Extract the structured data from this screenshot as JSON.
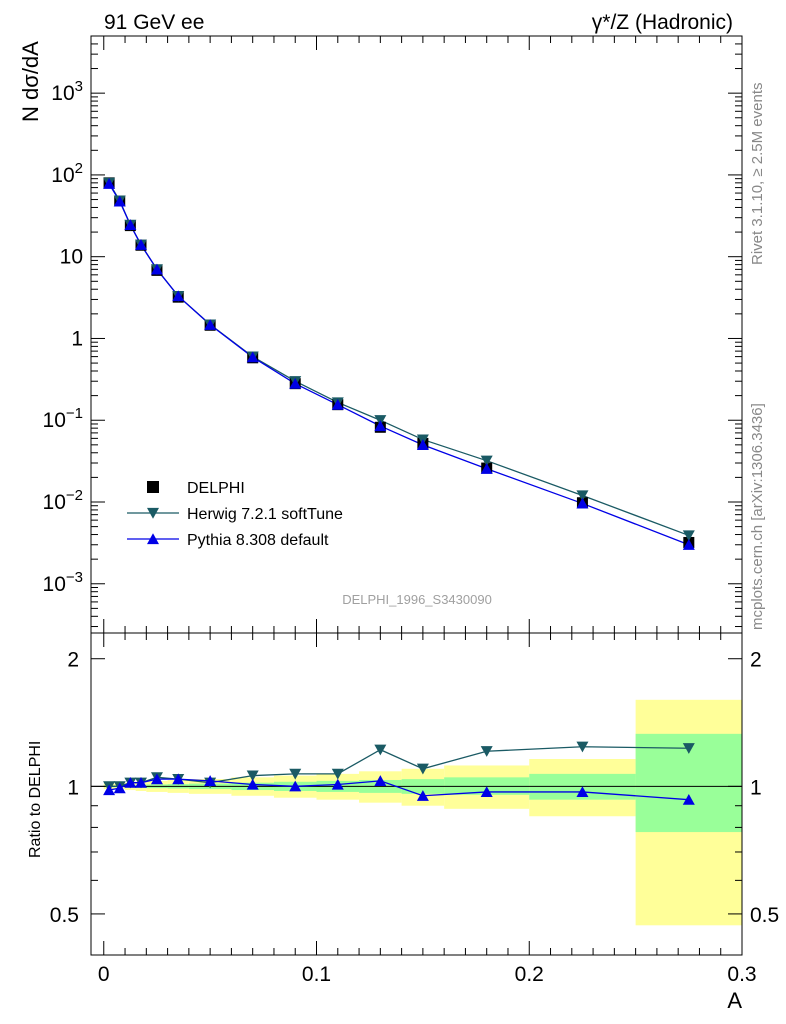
{
  "header": {
    "left": "91 GeV ee",
    "right": "γ*/Z (Hadronic)"
  },
  "side": {
    "rivet": "Rivet 3.1.10, ≥ 2.5M events",
    "mcplots": "mcplots.cern.ch [arXiv:1306.3436]"
  },
  "watermark": "DELPHI_1996_S3430090",
  "chart_data": [
    {
      "type": "scatter",
      "name": "main",
      "ylabel": "N dσ/dA",
      "yscale": "log",
      "ylim": [
        0.00025,
        5000
      ],
      "xlim": [
        -0.006,
        0.3
      ],
      "yticks": [
        {
          "v": 0.001,
          "base": "10",
          "exp": "−3"
        },
        {
          "v": 0.01,
          "base": "10",
          "exp": "−2"
        },
        {
          "v": 0.1,
          "base": "10",
          "exp": "−1"
        },
        {
          "v": 1,
          "base": "1",
          "exp": ""
        },
        {
          "v": 10,
          "base": "10",
          "exp": ""
        },
        {
          "v": 100,
          "base": "10",
          "exp": "2"
        },
        {
          "v": 1000,
          "base": "10",
          "exp": "3"
        }
      ],
      "x": [
        0.0025,
        0.0075,
        0.0125,
        0.0175,
        0.025,
        0.035,
        0.05,
        0.07,
        0.09,
        0.11,
        0.13,
        0.15,
        0.18,
        0.225,
        0.275
      ],
      "series": [
        {
          "name": "DELPHI",
          "color": "#000000",
          "marker": "square",
          "values": [
            80,
            48,
            24,
            13.8,
            6.8,
            3.2,
            1.45,
            0.58,
            0.28,
            0.155,
            0.082,
            0.052,
            0.026,
            0.0098,
            0.0032
          ]
        },
        {
          "name": "Herwig 7.2.1 softTune",
          "color": "#1a5a64",
          "marker": "triangle-down",
          "values": [
            80,
            48.5,
            24.5,
            14.0,
            7.0,
            3.3,
            1.48,
            0.6,
            0.3,
            0.165,
            0.1,
            0.058,
            0.032,
            0.012,
            0.0039
          ]
        },
        {
          "name": "Pythia 8.308 default",
          "color": "#0000e6",
          "marker": "triangle-up",
          "values": [
            78,
            47.5,
            24.5,
            14.0,
            7.0,
            3.3,
            1.47,
            0.59,
            0.28,
            0.155,
            0.085,
            0.05,
            0.0255,
            0.0096,
            0.003
          ]
        }
      ],
      "legend": "lower-left"
    },
    {
      "type": "scatter",
      "name": "ratio",
      "xlabel": "A",
      "ylabel": "Ratio to DELPHI",
      "yscale": "log",
      "ylim": [
        0.4,
        2.3
      ],
      "xlim": [
        -0.006,
        0.3
      ],
      "xticks": [
        {
          "v": 0,
          "label": "0"
        },
        {
          "v": 0.1,
          "label": "0.1"
        },
        {
          "v": 0.2,
          "label": "0.2"
        },
        {
          "v": 0.3,
          "label": "0.3"
        }
      ],
      "yticks": [
        {
          "v": 0.5,
          "label": "0.5"
        },
        {
          "v": 1,
          "label": "1"
        },
        {
          "v": 2,
          "label": "2"
        }
      ],
      "bands": [
        {
          "x0": 0.0,
          "x1": 0.005,
          "y_lo": 0.985,
          "y_hi": 1.015,
          "s_lo": 0.995,
          "s_hi": 1.005
        },
        {
          "x0": 0.005,
          "x1": 0.01,
          "y_lo": 0.985,
          "y_hi": 1.015,
          "s_lo": 0.995,
          "s_hi": 1.005
        },
        {
          "x0": 0.01,
          "x1": 0.015,
          "y_lo": 0.98,
          "y_hi": 1.02,
          "s_lo": 0.993,
          "s_hi": 1.007
        },
        {
          "x0": 0.015,
          "x1": 0.02,
          "y_lo": 0.975,
          "y_hi": 1.025,
          "s_lo": 0.992,
          "s_hi": 1.008
        },
        {
          "x0": 0.02,
          "x1": 0.03,
          "y_lo": 0.97,
          "y_hi": 1.03,
          "s_lo": 0.99,
          "s_hi": 1.01
        },
        {
          "x0": 0.03,
          "x1": 0.04,
          "y_lo": 0.965,
          "y_hi": 1.035,
          "s_lo": 0.988,
          "s_hi": 1.012
        },
        {
          "x0": 0.04,
          "x1": 0.06,
          "y_lo": 0.96,
          "y_hi": 1.04,
          "s_lo": 0.985,
          "s_hi": 1.015
        },
        {
          "x0": 0.06,
          "x1": 0.08,
          "y_lo": 0.95,
          "y_hi": 1.05,
          "s_lo": 0.98,
          "s_hi": 1.02
        },
        {
          "x0": 0.08,
          "x1": 0.1,
          "y_lo": 0.94,
          "y_hi": 1.06,
          "s_lo": 0.975,
          "s_hi": 1.025
        },
        {
          "x0": 0.1,
          "x1": 0.12,
          "y_lo": 0.93,
          "y_hi": 1.07,
          "s_lo": 0.97,
          "s_hi": 1.03
        },
        {
          "x0": 0.12,
          "x1": 0.14,
          "y_lo": 0.915,
          "y_hi": 1.085,
          "s_lo": 0.965,
          "s_hi": 1.035
        },
        {
          "x0": 0.14,
          "x1": 0.16,
          "y_lo": 0.9,
          "y_hi": 1.1,
          "s_lo": 0.96,
          "s_hi": 1.04
        },
        {
          "x0": 0.16,
          "x1": 0.2,
          "y_lo": 0.885,
          "y_hi": 1.12,
          "s_lo": 0.955,
          "s_hi": 1.05
        },
        {
          "x0": 0.2,
          "x1": 0.25,
          "y_lo": 0.85,
          "y_hi": 1.16,
          "s_lo": 0.93,
          "s_hi": 1.07
        },
        {
          "x0": 0.25,
          "x1": 0.3,
          "y_lo": 0.47,
          "y_hi": 1.6,
          "s_lo": 0.78,
          "s_hi": 1.33
        }
      ],
      "x": [
        0.0025,
        0.0075,
        0.0125,
        0.0175,
        0.025,
        0.035,
        0.05,
        0.07,
        0.09,
        0.11,
        0.13,
        0.15,
        0.18,
        0.225,
        0.275
      ],
      "series": [
        {
          "name": "Herwig 7.2.1 softTune",
          "color": "#1a5a64",
          "marker": "triangle-down",
          "values": [
            1.0,
            1.0,
            1.02,
            1.02,
            1.05,
            1.04,
            1.02,
            1.06,
            1.07,
            1.07,
            1.22,
            1.1,
            1.21,
            1.24,
            1.23
          ]
        },
        {
          "name": "Pythia 8.308 default",
          "color": "#0000e6",
          "marker": "triangle-up",
          "values": [
            0.98,
            0.99,
            1.02,
            1.02,
            1.04,
            1.04,
            1.03,
            1.01,
            1.0,
            1.01,
            1.03,
            0.95,
            0.97,
            0.97,
            0.93
          ]
        }
      ]
    }
  ]
}
